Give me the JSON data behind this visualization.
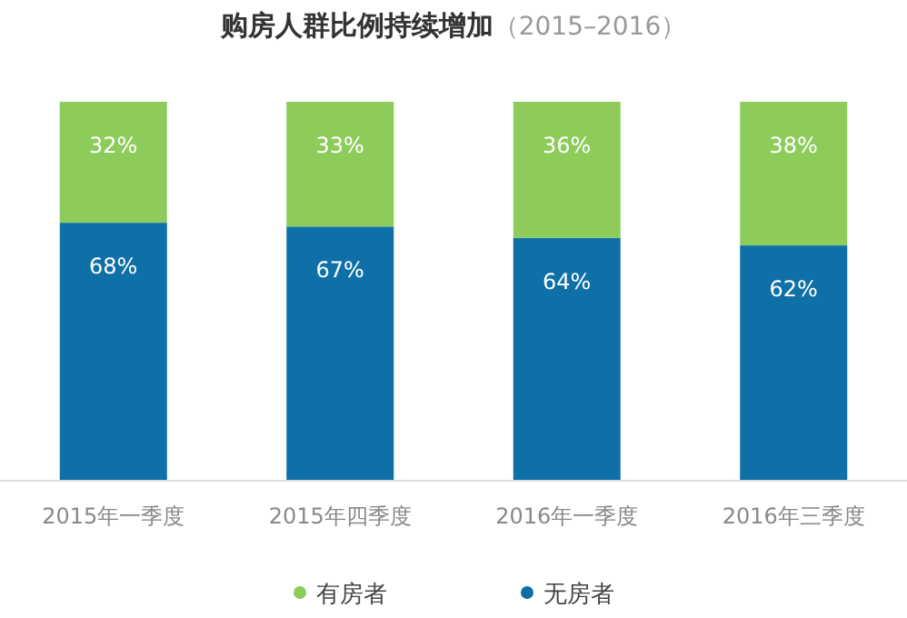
{
  "chart_data": {
    "type": "bar",
    "title": "**购房人群比例持续增加**（2015–2016）",
    "stacked": true,
    "legend": "bottom",
    "categories": [
      "2015年一季度",
      "2015年四季度",
      "2016年一季度",
      "2016年三季度"
    ],
    "series": [
      {
        "name": "无房者",
        "color": "#0f70a8",
        "values": [
          68,
          67,
          64,
          62
        ],
        "value_labels": [
          "68%",
          "67%",
          "64%",
          "62%"
        ]
      },
      {
        "name": "有房者",
        "color": "#8dcb5a",
        "values": [
          32,
          33,
          36,
          38
        ],
        "value_labels": [
          "32%",
          "33%",
          "36%",
          "38%"
        ]
      }
    ]
  }
}
